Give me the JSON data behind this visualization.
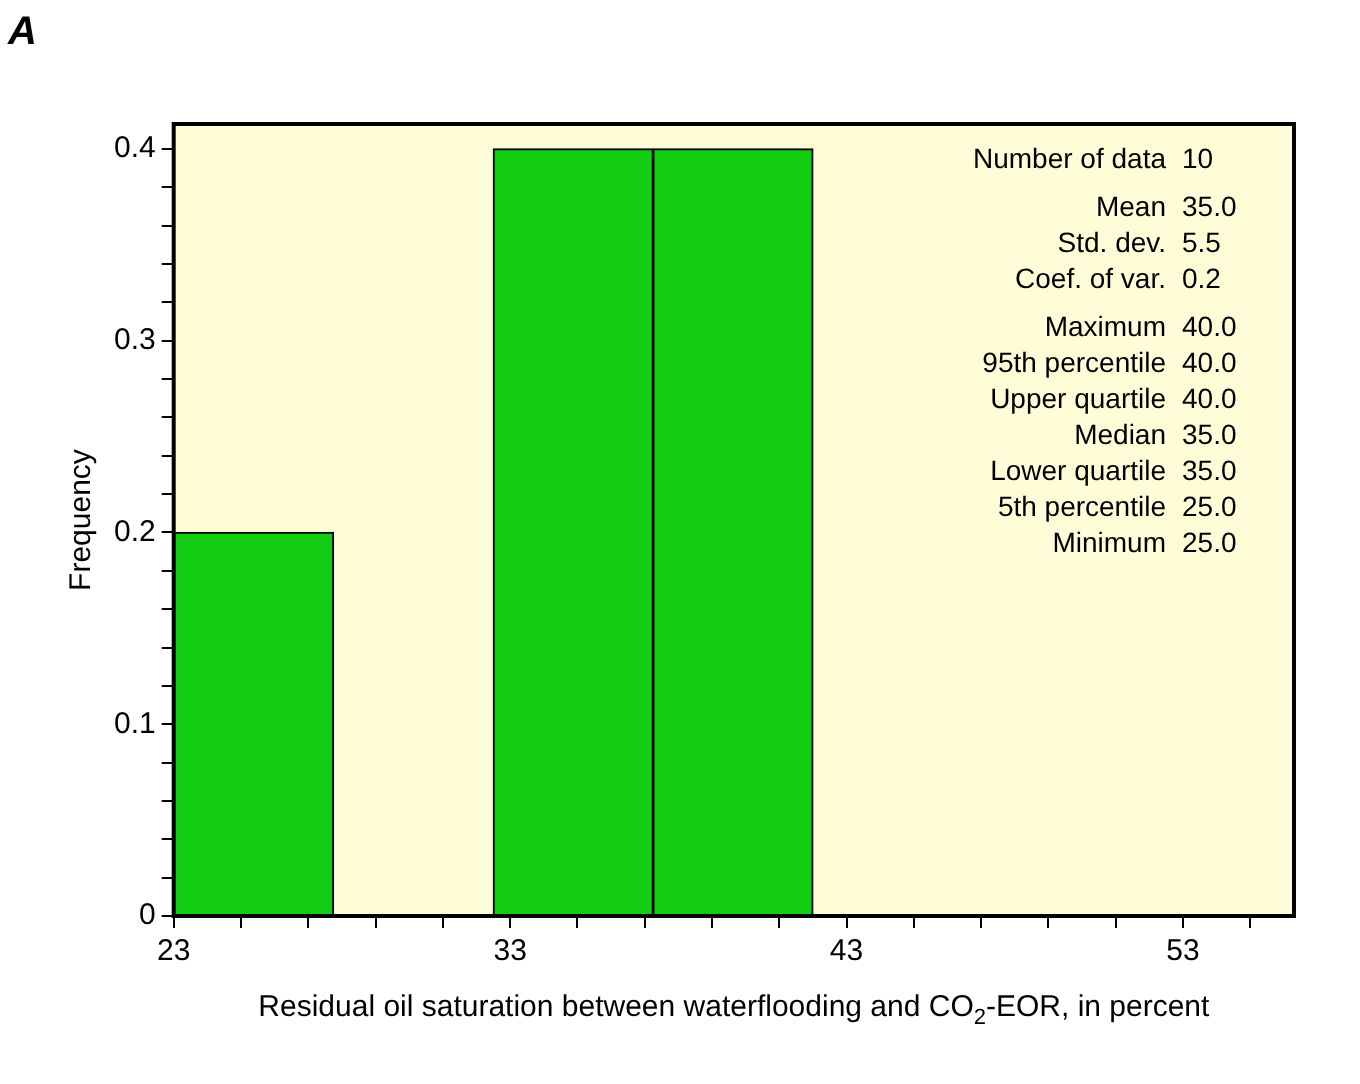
{
  "chart_data": {
    "type": "histogram",
    "title": "A",
    "xlabel": "Residual oil saturation between waterflooding and CO$_{2}$-EOR, in percent",
    "ylabel": "Frequency",
    "bins": [
      23,
      27.75,
      32.5,
      37.25,
      42
    ],
    "values": [
      0.2,
      0,
      0.4,
      0.4
    ],
    "color": "#12cc12",
    "xlim": [
      23,
      56.3
    ],
    "xticks": [
      23,
      {
        "value": 25,
        "label": null
      },
      {
        "value": 27,
        "label": null
      },
      {
        "value": 29,
        "label": null
      },
      {
        "value": 31,
        "label": null
      },
      33,
      {
        "value": 35,
        "label": null
      },
      {
        "value": 37,
        "label": null
      },
      {
        "value": 39,
        "label": null
      },
      {
        "value": 41,
        "label": null
      },
      43,
      {
        "value": 45,
        "label": null
      },
      {
        "value": 47,
        "label": null
      },
      {
        "value": 49,
        "label": null
      },
      {
        "value": 51,
        "label": null
      },
      53,
      {
        "value": 55,
        "label": null
      }
    ],
    "ylim": [
      0,
      0.413
    ],
    "yticks": [
      0,
      {
        "value": 0.02,
        "label": null
      },
      {
        "value": 0.04,
        "label": null
      },
      {
        "value": 0.06,
        "label": null
      },
      {
        "value": 0.08,
        "label": null
      },
      0.1,
      {
        "value": 0.12,
        "label": null
      },
      {
        "value": 0.14,
        "label": null
      },
      {
        "value": 0.16,
        "label": null
      },
      {
        "value": 0.18,
        "label": null
      },
      0.2,
      {
        "value": 0.22,
        "label": null
      },
      {
        "value": 0.24,
        "label": null
      },
      {
        "value": 0.26,
        "label": null
      },
      {
        "value": 0.28,
        "label": null
      },
      0.3,
      {
        "value": 0.32,
        "label": null
      },
      {
        "value": 0.34,
        "label": null
      },
      {
        "value": 0.36,
        "label": null
      },
      {
        "value": 0.38,
        "label": null
      },
      0.4
    ],
    "grid": false,
    "legend": false,
    "annotations": [
      "Number of data 10",
      "Mean 35.0",
      "Std. dev. 5.5",
      "Coef. of var. 0.2",
      "Maximum 40.0",
      "95th percentile 40.0",
      "Upper quartile 40.0",
      "Median 35.0",
      "Lower quartile 35.0",
      "5th percentile 25.0",
      "Minimum 25.0"
    ]
  }
}
